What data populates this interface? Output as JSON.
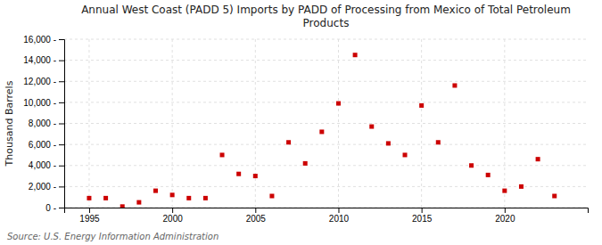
{
  "chart_data": {
    "type": "scatter",
    "title": "Annual West Coast (PADD 5) Imports by PADD of Processing from Mexico of Total Petroleum\nProducts",
    "ylabel": "Thousand Barrels",
    "annotations": [
      "Source: U.S. Energy Information Administration"
    ],
    "x": [
      1995,
      1996,
      1997,
      1998,
      1999,
      2000,
      2001,
      2002,
      2003,
      2004,
      2005,
      2006,
      2007,
      2008,
      2009,
      2010,
      2011,
      2012,
      2013,
      2014,
      2015,
      2016,
      2017,
      2018,
      2019,
      2020,
      2021,
      2022,
      2023
    ],
    "values": [
      900,
      900,
      100,
      500,
      1600,
      1200,
      900,
      900,
      5000,
      3200,
      3000,
      1100,
      6200,
      4200,
      7200,
      9900,
      14500,
      7700,
      6100,
      5000,
      9700,
      6200,
      11600,
      4000,
      3100,
      1600,
      2000,
      4600,
      1100
    ],
    "color": "#cc0000",
    "marker": "square",
    "xlim": [
      1993.5,
      2025
    ],
    "ylim": [
      0,
      16000
    ],
    "xticks": [
      1995,
      2000,
      2005,
      2010,
      2015,
      2020
    ],
    "yticks": [
      {
        "value": 0,
        "label": "0 -"
      },
      {
        "value": 2000,
        "label": "2,000 -"
      },
      {
        "value": 4000,
        "label": "4,000 -"
      },
      {
        "value": 6000,
        "label": "6,000 -"
      },
      {
        "value": 8000,
        "label": "8,000 -"
      },
      {
        "value": 10000,
        "label": "10,000 -"
      },
      {
        "value": 12000,
        "label": "12,000 -"
      },
      {
        "value": 14000,
        "label": "14,000 -"
      },
      {
        "value": 16000,
        "label": "16,000 -"
      }
    ],
    "grid": true
  }
}
